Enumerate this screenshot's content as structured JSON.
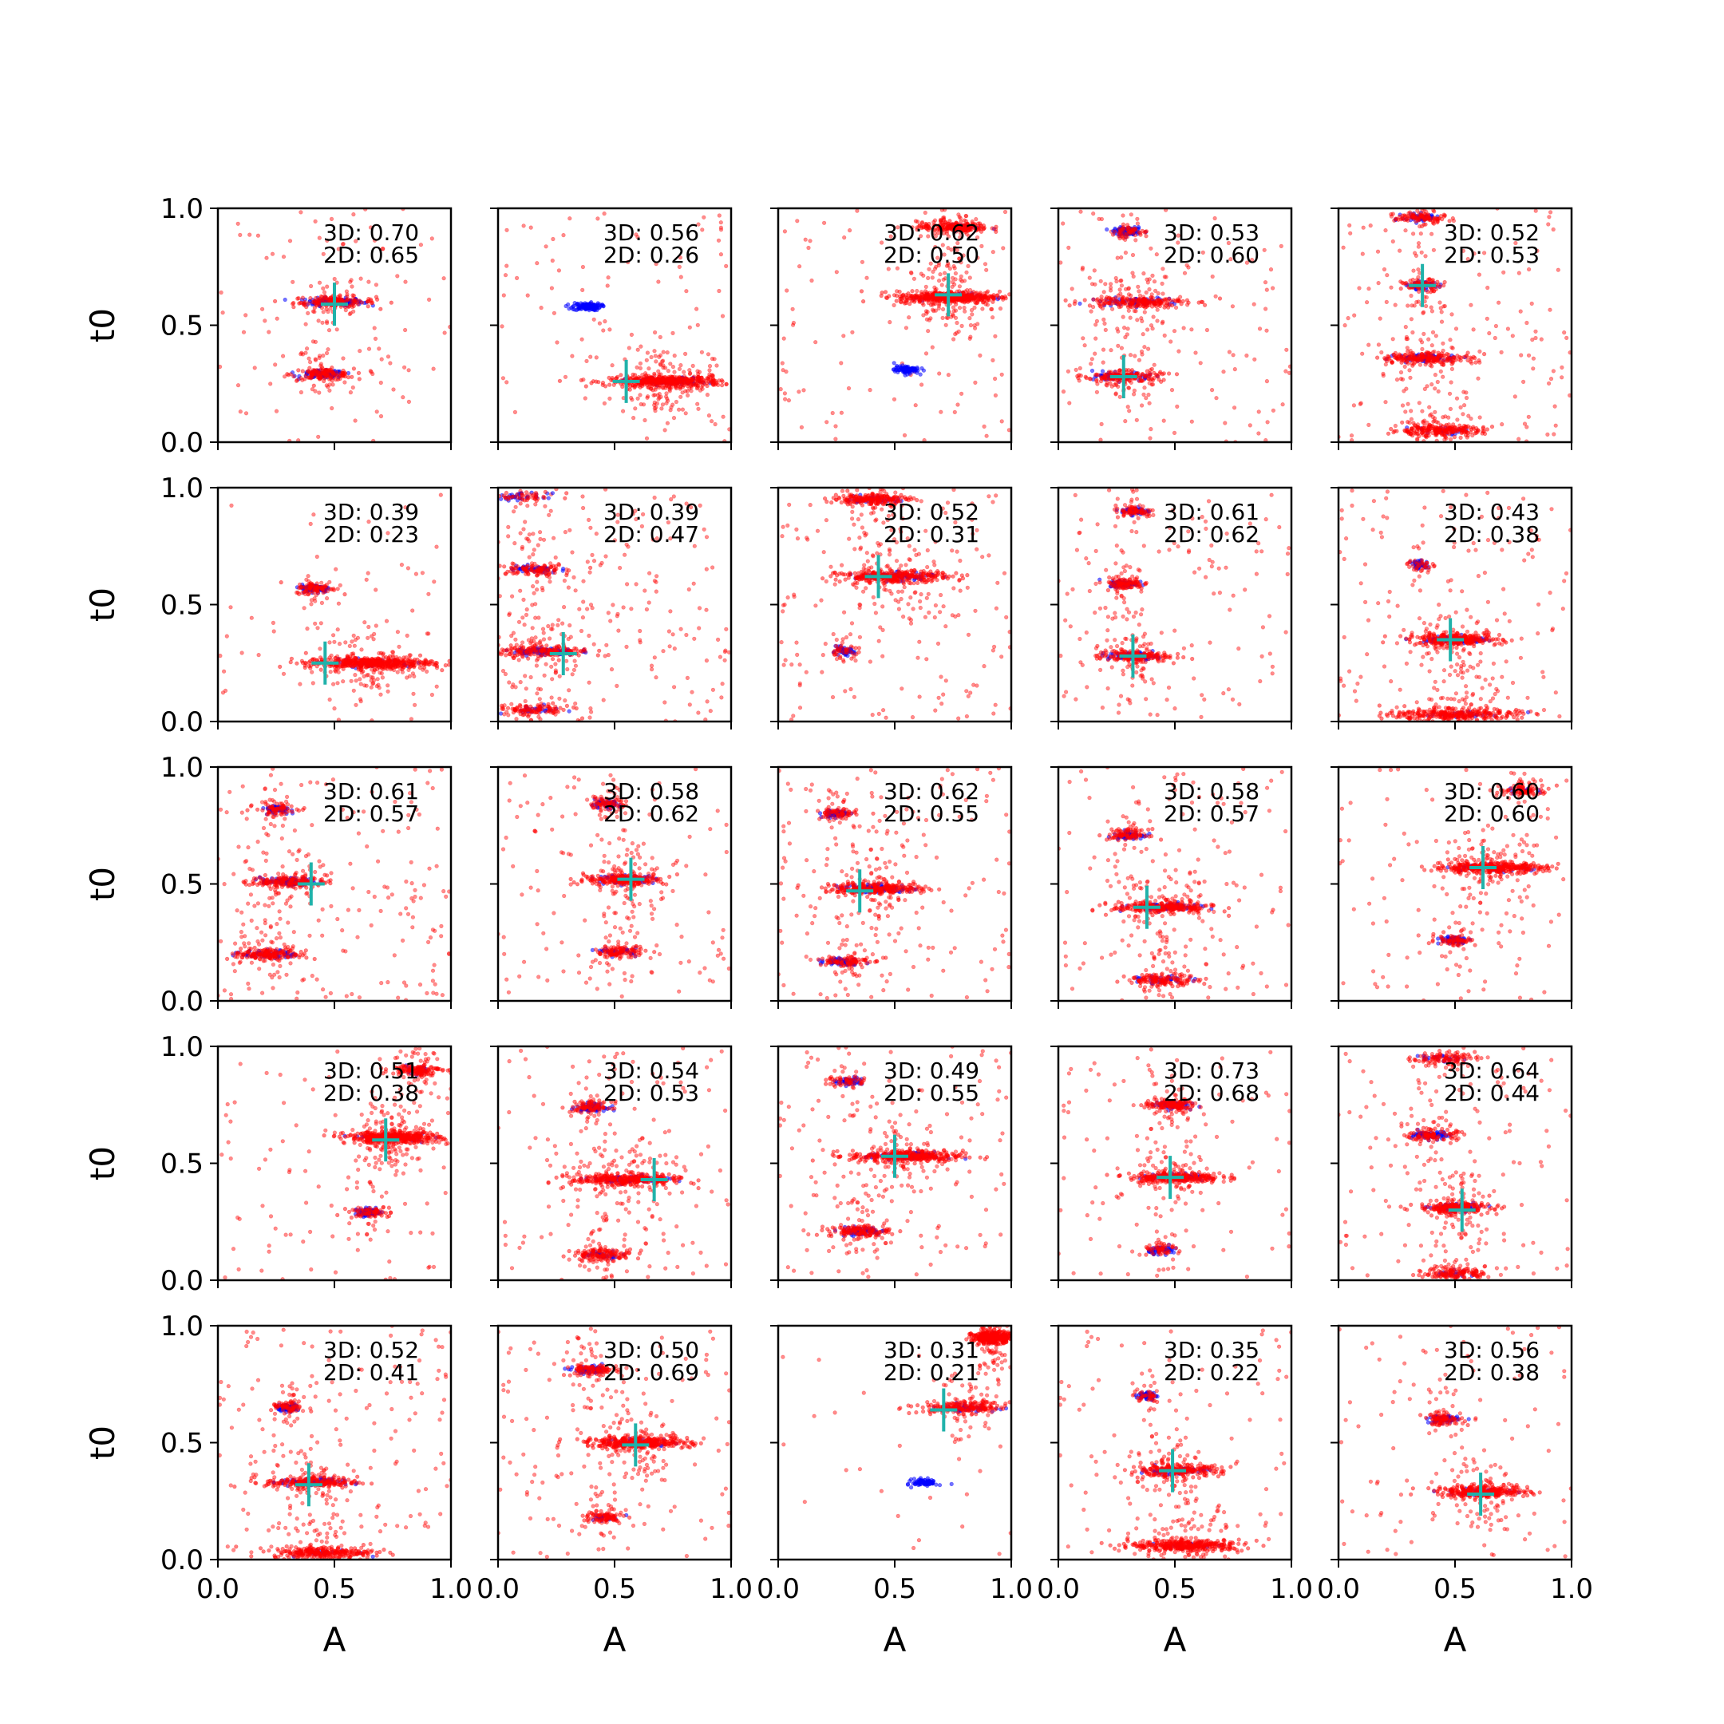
{
  "chart_data": {
    "type": "scatter",
    "layout": {
      "rows": 5,
      "cols": 5
    },
    "xlabel": "A",
    "ylabel": "t0",
    "xlim": [
      0,
      1
    ],
    "ylim": [
      0,
      1
    ],
    "xticks": [
      "0.0",
      "0.5",
      "1.0"
    ],
    "yticks": [
      "0.0",
      "0.5",
      "1.0"
    ],
    "grid": false,
    "colors": {
      "series_a": "#0000ff",
      "series_b": "#ff0000",
      "marker": "#20b2aa"
    },
    "panels": [
      {
        "annotations": [
          "3D: 0.70",
          "2D: 0.65"
        ],
        "marker": [
          0.5,
          0.59
        ],
        "clusters": [
          {
            "a": 0.5,
            "t": 0.6,
            "w": 0.16,
            "b": 0.17,
            "r": 0.09
          },
          {
            "a": 0.45,
            "t": 0.29,
            "w": 0.12,
            "b": 0.11,
            "r": 0.08
          }
        ],
        "noise": 0.1
      },
      {
        "annotations": [
          "3D: 0.56",
          "2D: 0.26"
        ],
        "marker": [
          0.55,
          0.26
        ],
        "clusters": [
          {
            "a": 0.38,
            "t": 0.58,
            "w": 0.08,
            "b": 0.14,
            "r": 0.0
          },
          {
            "a": 0.72,
            "t": 0.26,
            "w": 0.22,
            "b": 0.1,
            "r": 0.28
          }
        ],
        "noise": 0.1
      },
      {
        "annotations": [
          "3D: 0.62",
          "2D: 0.50"
        ],
        "marker": [
          0.73,
          0.63
        ],
        "clusters": [
          {
            "a": 0.73,
            "t": 0.62,
            "w": 0.2,
            "b": 0.05,
            "r": 0.28
          },
          {
            "a": 0.55,
            "t": 0.31,
            "w": 0.07,
            "b": 0.1,
            "r": 0.0
          },
          {
            "a": 0.75,
            "t": 0.92,
            "w": 0.14,
            "b": 0.02,
            "r": 0.12
          }
        ],
        "noise": 0.1
      },
      {
        "annotations": [
          "3D: 0.53",
          "2D: 0.60"
        ],
        "marker": [
          0.28,
          0.28
        ],
        "clusters": [
          {
            "a": 0.3,
            "t": 0.9,
            "w": 0.08,
            "b": 0.1,
            "r": 0.03
          },
          {
            "a": 0.33,
            "t": 0.6,
            "w": 0.2,
            "b": 0.08,
            "r": 0.12
          },
          {
            "a": 0.28,
            "t": 0.28,
            "w": 0.15,
            "b": 0.08,
            "r": 0.1
          }
        ],
        "noise": 0.15
      },
      {
        "annotations": [
          "3D: 0.52",
          "2D: 0.53"
        ],
        "marker": [
          0.36,
          0.67
        ],
        "clusters": [
          {
            "a": 0.35,
            "t": 0.96,
            "w": 0.1,
            "b": 0.07,
            "r": 0.06
          },
          {
            "a": 0.36,
            "t": 0.67,
            "w": 0.08,
            "b": 0.07,
            "r": 0.05
          },
          {
            "a": 0.38,
            "t": 0.36,
            "w": 0.18,
            "b": 0.07,
            "r": 0.12
          },
          {
            "a": 0.42,
            "t": 0.05,
            "w": 0.18,
            "b": 0.02,
            "r": 0.14
          }
        ],
        "noise": 0.15
      },
      {
        "annotations": [
          "3D: 0.39",
          "2D: 0.23"
        ],
        "marker": [
          0.46,
          0.25
        ],
        "clusters": [
          {
            "a": 0.42,
            "t": 0.57,
            "w": 0.08,
            "b": 0.1,
            "r": 0.05
          },
          {
            "a": 0.65,
            "t": 0.25,
            "w": 0.25,
            "b": 0.05,
            "r": 0.28
          }
        ],
        "noise": 0.05
      },
      {
        "annotations": [
          "3D: 0.39",
          "2D: 0.47"
        ],
        "marker": [
          0.28,
          0.29
        ],
        "clusters": [
          {
            "a": 0.2,
            "t": 0.3,
            "w": 0.18,
            "b": 0.12,
            "r": 0.1
          },
          {
            "a": 0.15,
            "t": 0.65,
            "w": 0.15,
            "b": 0.06,
            "r": 0.06
          },
          {
            "a": 0.1,
            "t": 0.96,
            "w": 0.15,
            "b": 0.04,
            "r": 0.03
          },
          {
            "a": 0.15,
            "t": 0.05,
            "w": 0.15,
            "b": 0.03,
            "r": 0.06
          }
        ],
        "noise": 0.22
      },
      {
        "annotations": [
          "3D: 0.52",
          "2D: 0.31"
        ],
        "marker": [
          0.43,
          0.62
        ],
        "clusters": [
          {
            "a": 0.5,
            "t": 0.62,
            "w": 0.22,
            "b": 0.1,
            "r": 0.18
          },
          {
            "a": 0.4,
            "t": 0.95,
            "w": 0.15,
            "b": 0.05,
            "r": 0.12
          },
          {
            "a": 0.28,
            "t": 0.3,
            "w": 0.06,
            "b": 0.06,
            "r": 0.02
          }
        ],
        "noise": 0.18
      },
      {
        "annotations": [
          "3D: 0.61",
          "2D: 0.62"
        ],
        "marker": [
          0.32,
          0.28
        ],
        "clusters": [
          {
            "a": 0.33,
            "t": 0.9,
            "w": 0.08,
            "b": 0.06,
            "r": 0.04
          },
          {
            "a": 0.28,
            "t": 0.59,
            "w": 0.08,
            "b": 0.08,
            "r": 0.06
          },
          {
            "a": 0.32,
            "t": 0.28,
            "w": 0.14,
            "b": 0.1,
            "r": 0.1
          }
        ],
        "noise": 0.15
      },
      {
        "annotations": [
          "3D: 0.43",
          "2D: 0.38"
        ],
        "marker": [
          0.48,
          0.35
        ],
        "clusters": [
          {
            "a": 0.35,
            "t": 0.67,
            "w": 0.05,
            "b": 0.06,
            "r": 0.02
          },
          {
            "a": 0.5,
            "t": 0.35,
            "w": 0.18,
            "b": 0.1,
            "r": 0.16
          },
          {
            "a": 0.5,
            "t": 0.03,
            "w": 0.25,
            "b": 0.03,
            "r": 0.18
          }
        ],
        "noise": 0.15
      },
      {
        "annotations": [
          "3D: 0.61",
          "2D: 0.57"
        ],
        "marker": [
          0.4,
          0.5
        ],
        "clusters": [
          {
            "a": 0.25,
            "t": 0.82,
            "w": 0.08,
            "b": 0.07,
            "r": 0.04
          },
          {
            "a": 0.3,
            "t": 0.51,
            "w": 0.15,
            "b": 0.1,
            "r": 0.1
          },
          {
            "a": 0.22,
            "t": 0.2,
            "w": 0.15,
            "b": 0.08,
            "r": 0.1
          }
        ],
        "noise": 0.18
      },
      {
        "annotations": [
          "3D: 0.58",
          "2D: 0.62"
        ],
        "marker": [
          0.57,
          0.52
        ],
        "clusters": [
          {
            "a": 0.46,
            "t": 0.84,
            "w": 0.08,
            "b": 0.07,
            "r": 0.04
          },
          {
            "a": 0.55,
            "t": 0.52,
            "w": 0.16,
            "b": 0.08,
            "r": 0.14
          },
          {
            "a": 0.52,
            "t": 0.21,
            "w": 0.1,
            "b": 0.04,
            "r": 0.06
          }
        ],
        "noise": 0.15
      },
      {
        "annotations": [
          "3D: 0.62",
          "2D: 0.55"
        ],
        "marker": [
          0.35,
          0.47
        ],
        "clusters": [
          {
            "a": 0.25,
            "t": 0.8,
            "w": 0.08,
            "b": 0.07,
            "r": 0.04
          },
          {
            "a": 0.42,
            "t": 0.48,
            "w": 0.2,
            "b": 0.1,
            "r": 0.16
          },
          {
            "a": 0.28,
            "t": 0.17,
            "w": 0.1,
            "b": 0.07,
            "r": 0.05
          }
        ],
        "noise": 0.18
      },
      {
        "annotations": [
          "3D: 0.58",
          "2D: 0.57"
        ],
        "marker": [
          0.38,
          0.4
        ],
        "clusters": [
          {
            "a": 0.3,
            "t": 0.71,
            "w": 0.08,
            "b": 0.07,
            "r": 0.05
          },
          {
            "a": 0.45,
            "t": 0.4,
            "w": 0.2,
            "b": 0.09,
            "r": 0.16
          },
          {
            "a": 0.45,
            "t": 0.09,
            "w": 0.14,
            "b": 0.04,
            "r": 0.08
          }
        ],
        "noise": 0.15
      },
      {
        "annotations": [
          "3D: 0.60",
          "2D: 0.60"
        ],
        "marker": [
          0.62,
          0.57
        ],
        "clusters": [
          {
            "a": 0.65,
            "t": 0.57,
            "w": 0.22,
            "b": 0.05,
            "r": 0.22
          },
          {
            "a": 0.5,
            "t": 0.26,
            "w": 0.08,
            "b": 0.08,
            "r": 0.04
          },
          {
            "a": 0.8,
            "t": 0.9,
            "w": 0.1,
            "b": 0.02,
            "r": 0.05
          }
        ],
        "noise": 0.1
      },
      {
        "annotations": [
          "3D: 0.51",
          "2D: 0.38"
        ],
        "marker": [
          0.72,
          0.6
        ],
        "clusters": [
          {
            "a": 0.75,
            "t": 0.61,
            "w": 0.18,
            "b": 0.05,
            "r": 0.28
          },
          {
            "a": 0.65,
            "t": 0.29,
            "w": 0.08,
            "b": 0.08,
            "r": 0.04
          },
          {
            "a": 0.85,
            "t": 0.9,
            "w": 0.1,
            "b": 0.02,
            "r": 0.08
          }
        ],
        "noise": 0.1
      },
      {
        "annotations": [
          "3D: 0.54",
          "2D: 0.53"
        ],
        "marker": [
          0.67,
          0.43
        ],
        "clusters": [
          {
            "a": 0.4,
            "t": 0.74,
            "w": 0.08,
            "b": 0.09,
            "r": 0.05
          },
          {
            "a": 0.55,
            "t": 0.43,
            "w": 0.22,
            "b": 0.08,
            "r": 0.2
          },
          {
            "a": 0.45,
            "t": 0.11,
            "w": 0.12,
            "b": 0.04,
            "r": 0.08
          }
        ],
        "noise": 0.15
      },
      {
        "annotations": [
          "3D: 0.49",
          "2D: 0.55"
        ],
        "marker": [
          0.5,
          0.53
        ],
        "clusters": [
          {
            "a": 0.3,
            "t": 0.85,
            "w": 0.08,
            "b": 0.06,
            "r": 0.03
          },
          {
            "a": 0.55,
            "t": 0.53,
            "w": 0.22,
            "b": 0.09,
            "r": 0.2
          },
          {
            "a": 0.35,
            "t": 0.21,
            "w": 0.12,
            "b": 0.09,
            "r": 0.08
          }
        ],
        "noise": 0.15
      },
      {
        "annotations": [
          "3D: 0.73",
          "2D: 0.68"
        ],
        "marker": [
          0.48,
          0.44
        ],
        "clusters": [
          {
            "a": 0.48,
            "t": 0.75,
            "w": 0.1,
            "b": 0.06,
            "r": 0.08
          },
          {
            "a": 0.5,
            "t": 0.44,
            "w": 0.18,
            "b": 0.08,
            "r": 0.16
          },
          {
            "a": 0.45,
            "t": 0.13,
            "w": 0.08,
            "b": 0.06,
            "r": 0.03
          }
        ],
        "noise": 0.1
      },
      {
        "annotations": [
          "3D: 0.64",
          "2D: 0.44"
        ],
        "marker": [
          0.53,
          0.3
        ],
        "clusters": [
          {
            "a": 0.4,
            "t": 0.62,
            "w": 0.1,
            "b": 0.09,
            "r": 0.06
          },
          {
            "a": 0.5,
            "t": 0.31,
            "w": 0.14,
            "b": 0.08,
            "r": 0.14
          },
          {
            "a": 0.45,
            "t": 0.95,
            "w": 0.12,
            "b": 0.03,
            "r": 0.06
          },
          {
            "a": 0.5,
            "t": 0.03,
            "w": 0.12,
            "b": 0.02,
            "r": 0.08
          }
        ],
        "noise": 0.15
      },
      {
        "annotations": [
          "3D: 0.52",
          "2D: 0.41"
        ],
        "marker": [
          0.39,
          0.32
        ],
        "clusters": [
          {
            "a": 0.3,
            "t": 0.65,
            "w": 0.06,
            "b": 0.08,
            "r": 0.04
          },
          {
            "a": 0.4,
            "t": 0.33,
            "w": 0.18,
            "b": 0.1,
            "r": 0.12
          },
          {
            "a": 0.45,
            "t": 0.03,
            "w": 0.2,
            "b": 0.02,
            "r": 0.16
          }
        ],
        "noise": 0.18
      },
      {
        "annotations": [
          "3D: 0.50",
          "2D: 0.69"
        ],
        "marker": [
          0.59,
          0.49
        ],
        "clusters": [
          {
            "a": 0.4,
            "t": 0.81,
            "w": 0.1,
            "b": 0.08,
            "r": 0.06
          },
          {
            "a": 0.6,
            "t": 0.5,
            "w": 0.2,
            "b": 0.05,
            "r": 0.22
          },
          {
            "a": 0.45,
            "t": 0.18,
            "w": 0.08,
            "b": 0.03,
            "r": 0.05
          }
        ],
        "noise": 0.15
      },
      {
        "annotations": [
          "3D: 0.31",
          "2D: 0.21"
        ],
        "marker": [
          0.71,
          0.64
        ],
        "clusters": [
          {
            "a": 0.8,
            "t": 0.65,
            "w": 0.18,
            "b": 0.06,
            "r": 0.12
          },
          {
            "a": 0.63,
            "t": 0.33,
            "w": 0.07,
            "b": 0.1,
            "r": 0.0
          },
          {
            "a": 0.92,
            "t": 0.95,
            "w": 0.08,
            "b": 0.02,
            "r": 0.22
          }
        ],
        "noise": 0.03
      },
      {
        "annotations": [
          "3D: 0.35",
          "2D: 0.22"
        ],
        "marker": [
          0.49,
          0.38
        ],
        "clusters": [
          {
            "a": 0.38,
            "t": 0.7,
            "w": 0.05,
            "b": 0.07,
            "r": 0.02
          },
          {
            "a": 0.5,
            "t": 0.38,
            "w": 0.18,
            "b": 0.08,
            "r": 0.14
          },
          {
            "a": 0.55,
            "t": 0.06,
            "w": 0.22,
            "b": 0.02,
            "r": 0.22
          }
        ],
        "noise": 0.12
      },
      {
        "annotations": [
          "3D: 0.56",
          "2D: 0.38"
        ],
        "marker": [
          0.61,
          0.28
        ],
        "clusters": [
          {
            "a": 0.45,
            "t": 0.6,
            "w": 0.08,
            "b": 0.09,
            "r": 0.05
          },
          {
            "a": 0.62,
            "t": 0.29,
            "w": 0.18,
            "b": 0.05,
            "r": 0.18
          }
        ],
        "noise": 0.1
      }
    ]
  }
}
